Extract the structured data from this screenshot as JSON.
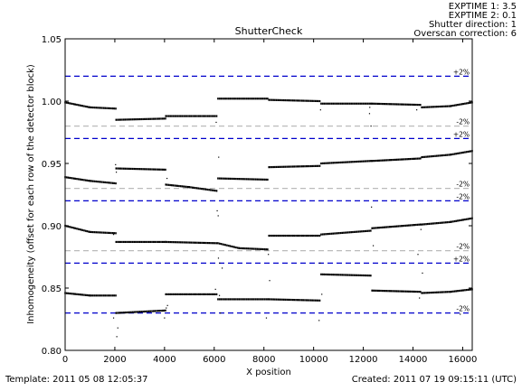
{
  "header_info": [
    "EXPTIME 1: 3.5",
    "EXPTIME 2: 0.1",
    "Shutter direction: 1",
    "Overscan correction: 6"
  ],
  "footer": {
    "template": "Template: 2011 05 08 12:05:37",
    "created": "Created: 2011 07 19 09:15:11 (UTC)"
  },
  "chart_data": {
    "type": "scatter",
    "title": "ShutterCheck",
    "xlabel": "X position",
    "ylabel": "Inhomogeneity (offset for each row of the detector block)",
    "xlim": [
      0,
      16384
    ],
    "ylim": [
      0.8,
      1.05
    ],
    "xticks": [
      0,
      2000,
      4000,
      6000,
      8000,
      10000,
      12000,
      14000,
      16000
    ],
    "xtick_labels": [
      "0",
      "2000",
      "4000",
      "6000",
      "8000",
      "10000",
      "12000",
      "14000",
      "16000"
    ],
    "yticks": [
      0.8,
      0.85,
      0.9,
      0.95,
      1.0,
      1.05
    ],
    "ytick_labels": [
      "0.80",
      "0.85",
      "0.90",
      "0.95",
      "1.00",
      "1.05"
    ],
    "grid": false,
    "reference_lines": [
      {
        "y": 1.02,
        "label": "+2%",
        "color": "#0000cc",
        "style": "dashed"
      },
      {
        "y": 0.98,
        "label": "-2%",
        "color": "#bbbbbb",
        "style": "dashed"
      },
      {
        "y": 0.97,
        "label": "+2%",
        "color": "#0000cc",
        "style": "dashed"
      },
      {
        "y": 0.93,
        "label": "-2%",
        "color": "#bbbbbb",
        "style": "dashed"
      },
      {
        "y": 0.92,
        "label": "-2%",
        "color": "#0000cc",
        "style": "dashed"
      },
      {
        "y": 0.88,
        "label": "-2%",
        "color": "#bbbbbb",
        "style": "dashed"
      },
      {
        "y": 0.87,
        "label": "+2%",
        "color": "#0000cc",
        "style": "dashed"
      },
      {
        "y": 0.83,
        "label": "-2%",
        "color": "#0000cc",
        "style": "dashed"
      }
    ],
    "series": [
      {
        "points": [
          [
            0,
            0.999
          ],
          [
            1000,
            0.995
          ],
          [
            2040,
            0.994
          ]
        ]
      },
      {
        "points": [
          [
            2050,
            0.985
          ],
          [
            4040,
            0.986
          ]
        ]
      },
      {
        "points": [
          [
            4050,
            0.988
          ],
          [
            6100,
            0.988
          ]
        ]
      },
      {
        "points": [
          [
            6150,
            1.002
          ],
          [
            8150,
            1.002
          ]
        ]
      },
      {
        "points": [
          [
            8200,
            1.001
          ],
          [
            10250,
            1.0
          ]
        ]
      },
      {
        "points": [
          [
            10300,
            0.998
          ],
          [
            12300,
            0.998
          ]
        ]
      },
      {
        "points": [
          [
            12350,
            0.998
          ],
          [
            14300,
            0.997
          ]
        ]
      },
      {
        "points": [
          [
            14350,
            0.995
          ],
          [
            15500,
            0.996
          ],
          [
            16384,
            0.999
          ]
        ]
      },
      {
        "points": [
          [
            0,
            0.939
          ],
          [
            1000,
            0.936
          ],
          [
            2040,
            0.934
          ]
        ]
      },
      {
        "points": [
          [
            2050,
            0.946
          ],
          [
            4040,
            0.945
          ]
        ]
      },
      {
        "points": [
          [
            4050,
            0.933
          ],
          [
            5000,
            0.931
          ],
          [
            6100,
            0.928
          ]
        ]
      },
      {
        "points": [
          [
            6150,
            0.938
          ],
          [
            8150,
            0.937
          ]
        ]
      },
      {
        "points": [
          [
            8200,
            0.947
          ],
          [
            10250,
            0.948
          ]
        ]
      },
      {
        "points": [
          [
            10300,
            0.95
          ],
          [
            12300,
            0.952
          ]
        ]
      },
      {
        "points": [
          [
            12350,
            0.952
          ],
          [
            14300,
            0.954
          ]
        ]
      },
      {
        "points": [
          [
            14350,
            0.955
          ],
          [
            15500,
            0.957
          ],
          [
            16384,
            0.96
          ]
        ]
      },
      {
        "points": [
          [
            0,
            0.9
          ],
          [
            1000,
            0.895
          ],
          [
            2040,
            0.894
          ]
        ]
      },
      {
        "points": [
          [
            2050,
            0.887
          ],
          [
            4040,
            0.887
          ]
        ]
      },
      {
        "points": [
          [
            4050,
            0.887
          ],
          [
            6100,
            0.886
          ]
        ]
      },
      {
        "points": [
          [
            6150,
            0.886
          ],
          [
            7000,
            0.882
          ],
          [
            8150,
            0.881
          ]
        ]
      },
      {
        "points": [
          [
            8200,
            0.892
          ],
          [
            10250,
            0.892
          ]
        ]
      },
      {
        "points": [
          [
            10300,
            0.893
          ],
          [
            12300,
            0.896
          ]
        ]
      },
      {
        "points": [
          [
            12350,
            0.898
          ],
          [
            14300,
            0.901
          ]
        ]
      },
      {
        "points": [
          [
            14350,
            0.901
          ],
          [
            15500,
            0.903
          ],
          [
            16384,
            0.906
          ]
        ]
      },
      {
        "points": [
          [
            0,
            0.846
          ],
          [
            1000,
            0.844
          ],
          [
            2040,
            0.844
          ]
        ]
      },
      {
        "points": [
          [
            2050,
            0.83
          ],
          [
            4040,
            0.832
          ]
        ]
      },
      {
        "points": [
          [
            4050,
            0.845
          ],
          [
            6100,
            0.845
          ]
        ]
      },
      {
        "points": [
          [
            6150,
            0.841
          ],
          [
            8150,
            0.841
          ]
        ]
      },
      {
        "points": [
          [
            8200,
            0.841
          ],
          [
            10250,
            0.84
          ]
        ]
      },
      {
        "points": [
          [
            10300,
            0.861
          ],
          [
            12300,
            0.86
          ]
        ]
      },
      {
        "points": [
          [
            12350,
            0.848
          ],
          [
            14300,
            0.847
          ]
        ]
      },
      {
        "points": [
          [
            14350,
            0.846
          ],
          [
            15500,
            0.847
          ],
          [
            16384,
            0.849
          ]
        ]
      }
    ],
    "outliers": [
      [
        2030,
        0.949
      ],
      [
        2060,
        0.943
      ],
      [
        2120,
        0.818
      ],
      [
        2080,
        0.811
      ],
      [
        1950,
        0.826
      ],
      [
        4070,
        0.834
      ],
      [
        4000,
        0.826
      ],
      [
        4120,
        0.836
      ],
      [
        4100,
        0.938
      ],
      [
        6080,
        0.983
      ],
      [
        6180,
        0.955
      ],
      [
        6120,
        0.912
      ],
      [
        6160,
        0.908
      ],
      [
        6210,
        0.844
      ],
      [
        6250,
        0.83
      ],
      [
        6170,
        0.874
      ],
      [
        6220,
        0.87
      ],
      [
        6320,
        0.866
      ],
      [
        6050,
        0.849
      ],
      [
        8180,
        0.877
      ],
      [
        8230,
        0.856
      ],
      [
        8100,
        0.826
      ],
      [
        10280,
        0.993
      ],
      [
        10260,
        0.87
      ],
      [
        10330,
        0.845
      ],
      [
        10220,
        0.824
      ],
      [
        12250,
        0.99
      ],
      [
        12260,
        0.995
      ],
      [
        12310,
        0.98
      ],
      [
        12330,
        0.915
      ],
      [
        12400,
        0.884
      ],
      [
        14200,
        0.877
      ],
      [
        14320,
        0.897
      ],
      [
        14380,
        0.862
      ],
      [
        14260,
        0.842
      ],
      [
        14150,
        0.993
      ],
      [
        15900,
        0.829
      ],
      [
        1950,
        0.893
      ]
    ]
  }
}
